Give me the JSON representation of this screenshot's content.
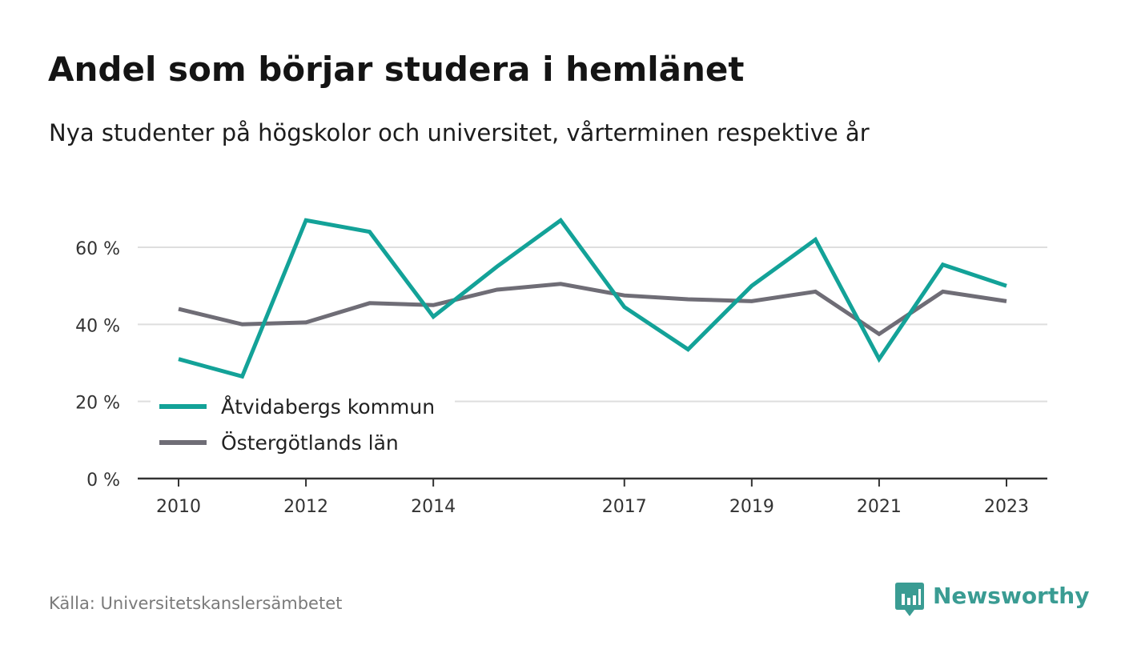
{
  "header": {
    "title": "Andel som börjar studera i hemlänet",
    "subtitle": "Nya studenter på högskolor och universitet, vårterminen respektive år"
  },
  "footer": {
    "source": "Källa: Universitetskanslersämbetet",
    "brand": "Newsworthy",
    "brand_color": "#3a9c93"
  },
  "chart_data": {
    "type": "line",
    "title": "Andel som börjar studera i hemlänet",
    "subtitle": "Nya studenter på högskolor och universitet, vårterminen respektive år",
    "xlabel": "",
    "ylabel": "",
    "x": [
      2010,
      2011,
      2012,
      2013,
      2014,
      2015,
      2016,
      2017,
      2018,
      2019,
      2020,
      2021,
      2022,
      2023
    ],
    "x_tick_labels": [
      "2010",
      "2012",
      "2014",
      "2017",
      "2019",
      "2021",
      "2023"
    ],
    "x_tick_values": [
      2010,
      2012,
      2014,
      2017,
      2019,
      2021,
      2023
    ],
    "y_ticks": [
      0,
      20,
      40,
      60
    ],
    "y_tick_labels": [
      "0 %",
      "20 %",
      "40 %",
      "60 %"
    ],
    "ylim": [
      0,
      70
    ],
    "grid": true,
    "legend_position": "bottom-left",
    "series": [
      {
        "name": "Åtvidabergs kommun",
        "color": "#13a298",
        "values": [
          31,
          26.5,
          67,
          64,
          42,
          55,
          67,
          44.5,
          33.5,
          50,
          62,
          31,
          55.5,
          50
        ]
      },
      {
        "name": "Östergötlands län",
        "color": "#6f6d76",
        "values": [
          44,
          40,
          40.5,
          45.5,
          45,
          49,
          50.5,
          47.5,
          46.5,
          46,
          48.5,
          37.5,
          48.5,
          46
        ]
      }
    ]
  }
}
